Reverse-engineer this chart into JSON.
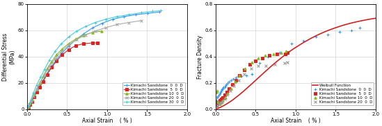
{
  "left": {
    "xlabel": "Axial Strain    ( % )",
    "ylabel_top": "(MPa)",
    "ylabel_main": "Differential Stress",
    "xlim": [
      0.0,
      2.0
    ],
    "ylim": [
      0.0,
      80.0
    ],
    "yticks": [
      0.0,
      20.0,
      40.0,
      60.0,
      80.0
    ],
    "xticks": [
      0.0,
      0.5,
      1.0,
      1.5,
      2.0
    ],
    "series": [
      {
        "label": "Kimachi Sandstone  0  0  D",
        "color": "#3399ff",
        "marker": "+",
        "markersize": 3.5,
        "linewidth": 0.8,
        "x": [
          0.0,
          0.02,
          0.04,
          0.06,
          0.09,
          0.12,
          0.16,
          0.2,
          0.25,
          0.31,
          0.37,
          0.44,
          0.52,
          0.61,
          0.71,
          0.82,
          0.94,
          1.07,
          1.21,
          1.36,
          1.51,
          1.65
        ],
        "y": [
          0.0,
          2.0,
          4.5,
          7.0,
          10.5,
          14.0,
          18.0,
          22.0,
          27.5,
          33.0,
          38.0,
          43.0,
          48.0,
          53.0,
          57.5,
          62.0,
          65.5,
          68.5,
          70.5,
          72.0,
          73.0,
          74.0
        ]
      },
      {
        "label": "Kimachi Sandstone  5  0  D",
        "color": "#dd2222",
        "marker": "s",
        "markersize": 2.5,
        "linewidth": 0.8,
        "x": [
          0.0,
          0.02,
          0.04,
          0.06,
          0.09,
          0.12,
          0.16,
          0.2,
          0.25,
          0.31,
          0.37,
          0.44,
          0.52,
          0.61,
          0.71,
          0.82,
          0.88
        ],
        "y": [
          0.0,
          1.5,
          3.5,
          6.0,
          9.5,
          13.0,
          17.0,
          21.0,
          26.5,
          32.0,
          37.0,
          41.5,
          45.5,
          48.5,
          50.0,
          50.5,
          50.5
        ]
      },
      {
        "label": "Kimachi Sandstone 10  0  D",
        "color": "#88bb22",
        "marker": "^",
        "markersize": 2.5,
        "linewidth": 0.8,
        "x": [
          0.0,
          0.02,
          0.04,
          0.06,
          0.09,
          0.12,
          0.16,
          0.2,
          0.25,
          0.31,
          0.37,
          0.44,
          0.52,
          0.61,
          0.71,
          0.82,
          0.93
        ],
        "y": [
          0.0,
          2.0,
          4.5,
          7.5,
          11.5,
          15.5,
          20.0,
          25.0,
          31.0,
          36.5,
          41.5,
          46.0,
          50.0,
          53.5,
          56.5,
          58.5,
          59.5
        ]
      },
      {
        "label": "Kimachi Sandstone 20  0  D",
        "color": "#aaaaaa",
        "marker": "x",
        "markersize": 2.5,
        "linewidth": 0.8,
        "x": [
          0.0,
          0.02,
          0.05,
          0.08,
          0.12,
          0.17,
          0.22,
          0.28,
          0.35,
          0.43,
          0.52,
          0.62,
          0.73,
          0.85,
          0.98,
          1.12,
          1.27,
          1.43
        ],
        "y": [
          0.0,
          2.5,
          6.0,
          10.0,
          15.0,
          20.5,
          26.5,
          32.5,
          38.5,
          44.0,
          49.0,
          53.0,
          56.5,
          59.5,
          62.0,
          64.5,
          66.0,
          67.5
        ]
      },
      {
        "label": "Kimachi Sandstone 30  0  D",
        "color": "#44ccdd",
        "marker": "+",
        "markersize": 3.5,
        "linewidth": 0.8,
        "x": [
          0.0,
          0.02,
          0.05,
          0.08,
          0.12,
          0.17,
          0.22,
          0.28,
          0.35,
          0.43,
          0.52,
          0.62,
          0.73,
          0.85,
          0.98,
          1.12,
          1.27,
          1.43,
          1.57,
          1.67
        ],
        "y": [
          0.0,
          3.0,
          7.5,
          12.5,
          18.5,
          24.5,
          30.5,
          37.5,
          44.0,
          50.0,
          55.0,
          59.5,
          63.0,
          66.0,
          68.5,
          70.5,
          72.0,
          73.5,
          74.5,
          75.0
        ]
      }
    ]
  },
  "right": {
    "xlabel": "Axial Strain    ( % )",
    "ylabel": "Fracture Density",
    "xlim": [
      0.0,
      2.0
    ],
    "ylim": [
      0.0,
      0.8
    ],
    "yticks": [
      0.0,
      0.2,
      0.4,
      0.6,
      0.8
    ],
    "xticks": [
      0.0,
      0.5,
      1.0,
      1.5,
      2.0
    ],
    "weibull": {
      "label": "Weibull Function",
      "color": "#cc2222",
      "linewidth": 1.2,
      "x": [
        0.0,
        0.05,
        0.1,
        0.15,
        0.2,
        0.25,
        0.3,
        0.35,
        0.4,
        0.45,
        0.5,
        0.55,
        0.6,
        0.65,
        0.7,
        0.75,
        0.8,
        0.85,
        0.9,
        0.95,
        1.0,
        1.1,
        1.2,
        1.3,
        1.4,
        1.5,
        1.6,
        1.7,
        1.8,
        1.9,
        2.0
      ],
      "y": [
        0.0,
        0.013,
        0.028,
        0.046,
        0.066,
        0.089,
        0.113,
        0.139,
        0.166,
        0.193,
        0.221,
        0.249,
        0.277,
        0.304,
        0.331,
        0.357,
        0.382,
        0.406,
        0.429,
        0.451,
        0.471,
        0.509,
        0.543,
        0.573,
        0.599,
        0.621,
        0.641,
        0.657,
        0.671,
        0.683,
        0.693
      ]
    },
    "series": [
      {
        "label": "Kimachi Sandstone  0  0  D",
        "color": "#3399ff",
        "marker": "+",
        "markersize": 3.5,
        "x": [
          0.01,
          0.02,
          0.03,
          0.04,
          0.05,
          0.06,
          0.07,
          0.08,
          0.09,
          0.1,
          0.11,
          0.12,
          0.13,
          0.15,
          0.17,
          0.19,
          0.22,
          0.25,
          0.28,
          0.32,
          0.38,
          0.45,
          0.55,
          0.65,
          0.8,
          0.95,
          1.1,
          1.25,
          1.4,
          1.55,
          1.7,
          1.8
        ],
        "y": [
          0.07,
          0.09,
          0.1,
          0.11,
          0.12,
          0.13,
          0.14,
          0.15,
          0.16,
          0.17,
          0.17,
          0.18,
          0.19,
          0.2,
          0.21,
          0.22,
          0.23,
          0.24,
          0.25,
          0.25,
          0.26,
          0.27,
          0.35,
          0.4,
          0.43,
          0.5,
          0.52,
          0.55,
          0.57,
          0.59,
          0.6,
          0.62
        ]
      },
      {
        "label": "Kimachi Sandstone  5  0  D",
        "color": "#dd2222",
        "marker": "s",
        "markersize": 2.5,
        "x": [
          0.01,
          0.02,
          0.03,
          0.05,
          0.07,
          0.09,
          0.11,
          0.14,
          0.17,
          0.21,
          0.25,
          0.3,
          0.36,
          0.43,
          0.5,
          0.58,
          0.67,
          0.77,
          0.87,
          0.9
        ],
        "y": [
          0.03,
          0.04,
          0.05,
          0.07,
          0.08,
          0.09,
          0.11,
          0.13,
          0.16,
          0.19,
          0.22,
          0.26,
          0.3,
          0.34,
          0.37,
          0.39,
          0.41,
          0.42,
          0.42,
          0.43
        ]
      },
      {
        "label": "Kimachi Sandstone 10  0  D",
        "color": "#88bb22",
        "marker": "^",
        "markersize": 2.5,
        "x": [
          0.01,
          0.02,
          0.03,
          0.05,
          0.07,
          0.09,
          0.12,
          0.15,
          0.19,
          0.24,
          0.3,
          0.37,
          0.45,
          0.53,
          0.62,
          0.72,
          0.82,
          0.88
        ],
        "y": [
          0.13,
          0.14,
          0.06,
          0.04,
          0.05,
          0.07,
          0.09,
          0.12,
          0.16,
          0.21,
          0.26,
          0.31,
          0.36,
          0.39,
          0.41,
          0.42,
          0.43,
          0.44
        ]
      },
      {
        "label": "Kimachi Sandstone 20  0  D",
        "color": "#999999",
        "marker": "x",
        "markersize": 2.5,
        "x": [
          0.01,
          0.02,
          0.04,
          0.06,
          0.08,
          0.11,
          0.14,
          0.18,
          0.23,
          0.29,
          0.36,
          0.44,
          0.53,
          0.63,
          0.74,
          0.86,
          0.9
        ],
        "y": [
          0.02,
          0.03,
          0.04,
          0.05,
          0.06,
          0.08,
          0.11,
          0.14,
          0.18,
          0.22,
          0.27,
          0.31,
          0.33,
          0.33,
          0.34,
          0.35,
          0.36
        ]
      }
    ]
  }
}
